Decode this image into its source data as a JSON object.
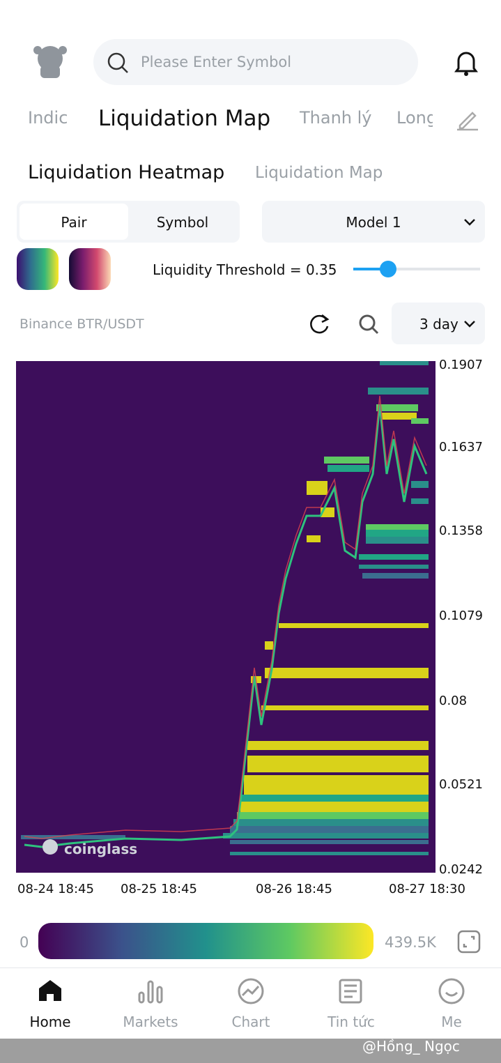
{
  "header": {
    "search_placeholder": "Please Enter Symbol"
  },
  "tabs": [
    "Indic",
    "Liquidation Map",
    "Thanh lý",
    "Long"
  ],
  "subtabs": [
    "Liquidation Heatmap",
    "Liquidation Map"
  ],
  "toggle": [
    "Pair",
    "Symbol"
  ],
  "model": "Model 1",
  "threshold": "Liquidity Threshold = 0.35",
  "pair": "Binance BTR/USDT",
  "range": "3 day",
  "heatmap": {
    "y_labels": [
      "0.1907",
      "0.1637",
      "0.1358",
      "0.1079",
      "0.08",
      "0.0521",
      "0.0242"
    ],
    "x_labels": [
      "08-24 18:45",
      "08-25 18:45",
      "08-26 18:45",
      "08-27 18:30"
    ],
    "watermark": "coinglass"
  },
  "legend": {
    "min": "0",
    "max": "439.5K"
  },
  "nav": [
    "Home",
    "Markets",
    "Chart",
    "Tin tức",
    "Me"
  ],
  "footer": {
    "credit": "@Hồng_ Ngọc"
  }
}
